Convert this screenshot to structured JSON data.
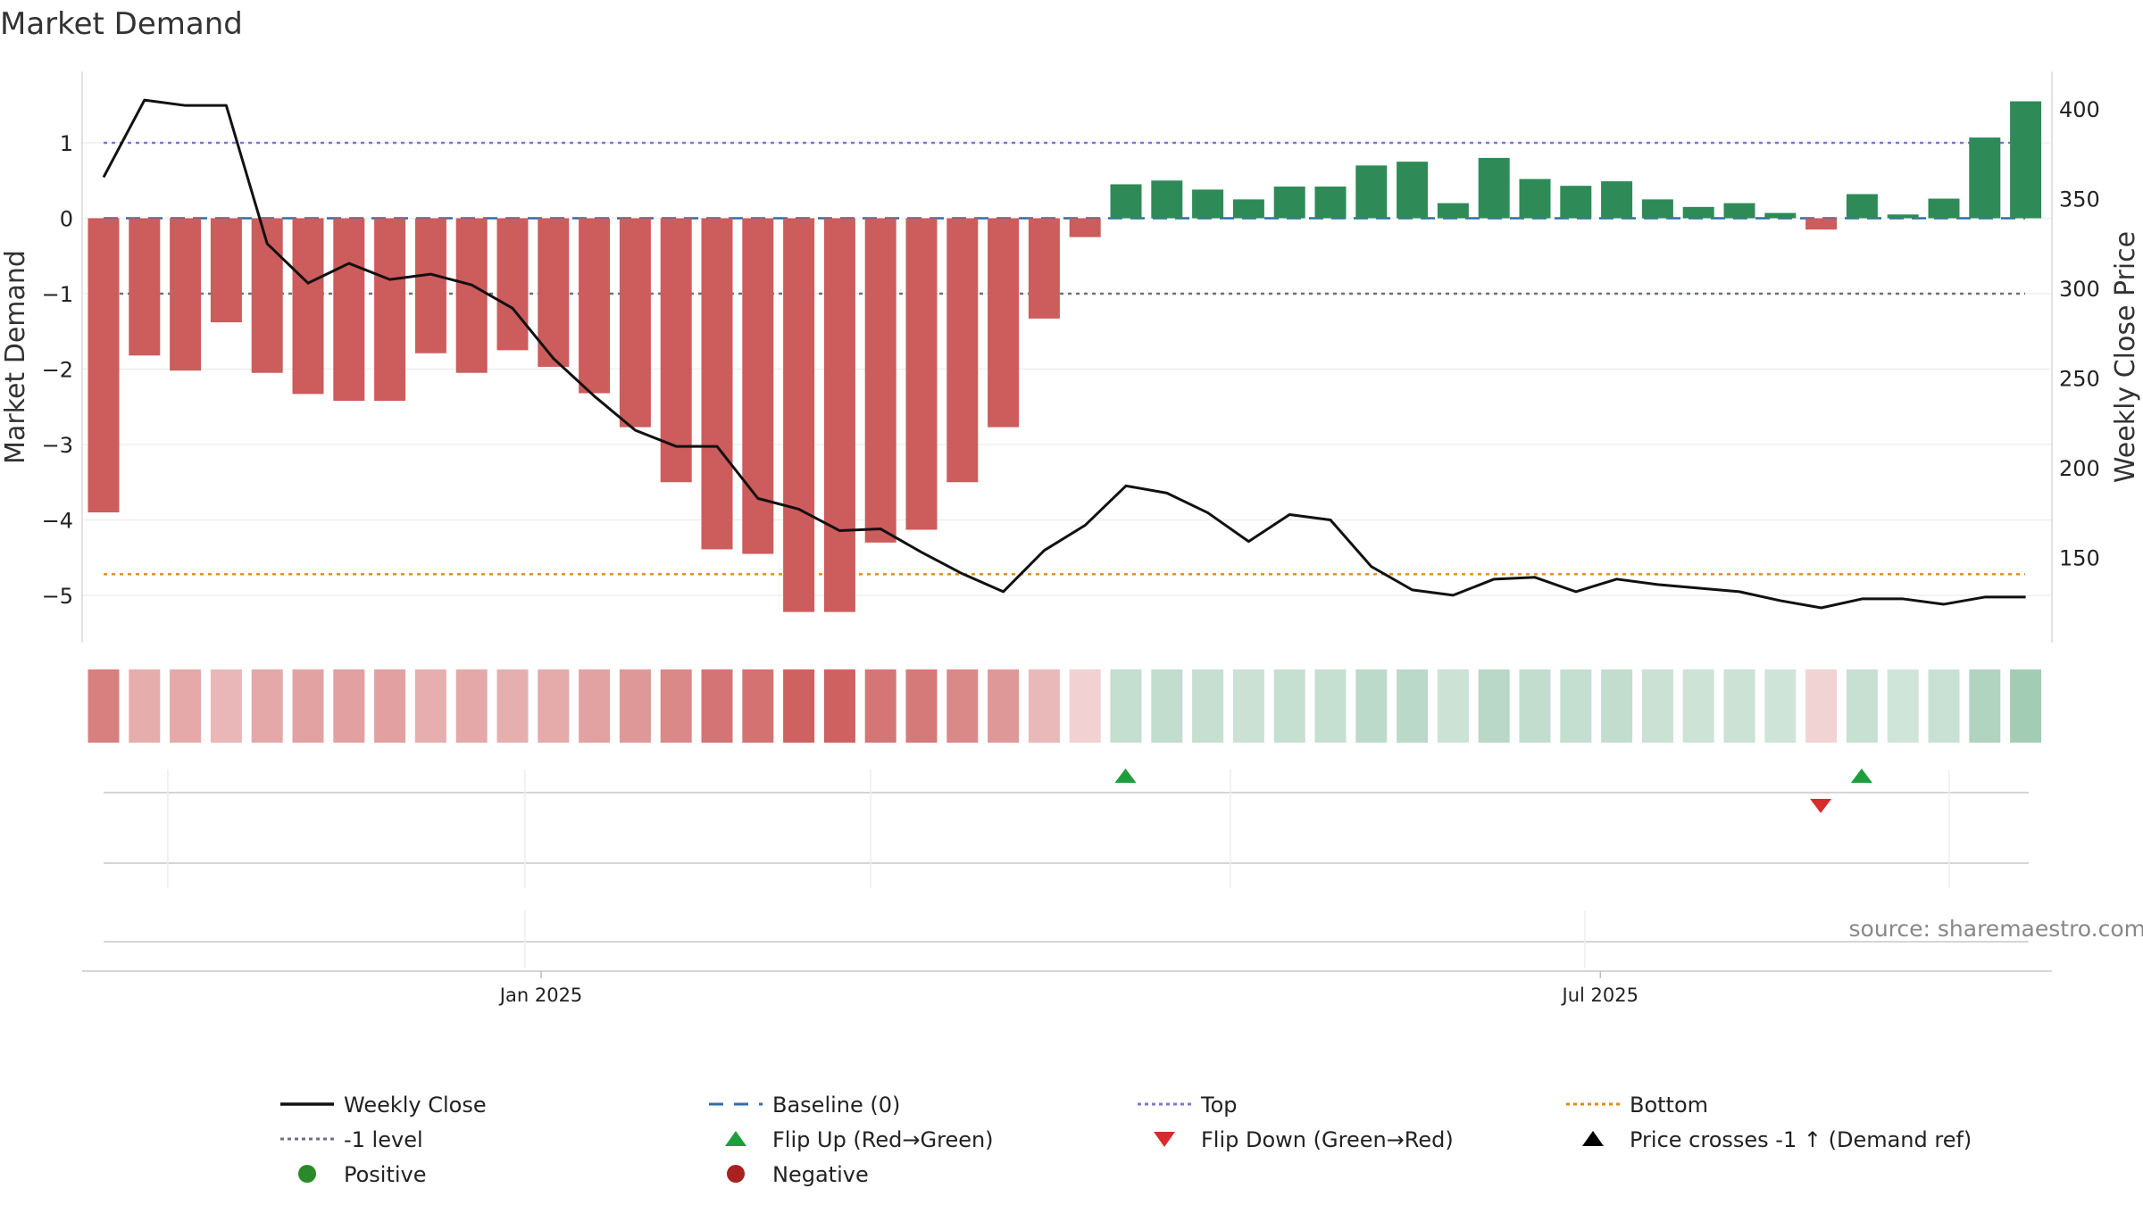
{
  "chart_data": {
    "type": "bar",
    "title": "Market Demand",
    "ylabel_left": "Market Demand",
    "ylabel_right": "Weekly Close Price",
    "y_left_ticks": [
      1,
      0,
      -1,
      -2,
      -3,
      -4,
      -5
    ],
    "y_left_tick_labels": [
      "1",
      "0",
      "−1",
      "−2",
      "−3",
      "−4",
      "−5"
    ],
    "y_right_ticks": [
      400,
      350,
      300,
      250,
      200,
      150
    ],
    "y_right_tick_labels": [
      "400",
      "350",
      "300",
      "250",
      "200",
      "150"
    ],
    "date_ticks": [
      {
        "week": 10.7,
        "label": "Jan 2025"
      },
      {
        "week": 36.6,
        "label": "Jul 2025"
      }
    ],
    "demand": [
      -3.9,
      -1.82,
      -2.02,
      -1.38,
      -2.05,
      -2.33,
      -2.42,
      -2.42,
      -1.79,
      -2.05,
      -1.75,
      -1.97,
      -2.32,
      -2.77,
      -3.5,
      -4.39,
      -4.45,
      -5.22,
      -5.22,
      -4.3,
      -4.13,
      -3.5,
      -2.77,
      -1.33,
      -0.25,
      0.45,
      0.5,
      0.38,
      0.25,
      0.42,
      0.42,
      0.7,
      0.75,
      0.2,
      0.8,
      0.52,
      0.43,
      0.49,
      0.25,
      0.15,
      0.2,
      0.07,
      -0.15,
      0.32,
      0.05,
      0.26,
      1.07,
      1.55
    ],
    "price": [
      362,
      405,
      402,
      402,
      325,
      303,
      314,
      305,
      308,
      302,
      289,
      261,
      240,
      221,
      212,
      212,
      183,
      177,
      165,
      166,
      153,
      141,
      131,
      154,
      168,
      190,
      186,
      175,
      159,
      174,
      171,
      145,
      132,
      129,
      138,
      139,
      131,
      138,
      135,
      133,
      131,
      126,
      122,
      127,
      127,
      124,
      128,
      128
    ],
    "reference_lines": [
      {
        "name": "Baseline (0)",
        "value": 0,
        "color": "#2f6da8"
      },
      {
        "name": "Top",
        "value": 1.0,
        "color": "#7b78d6"
      },
      {
        "name": "-1 level",
        "value": -1.0,
        "color": "#6d7180"
      },
      {
        "name": "Bottom",
        "value": -4.72,
        "color": "#e08a1e"
      }
    ],
    "flip_up_weeks": [
      25,
      43
    ],
    "flip_down_weeks": [
      42
    ],
    "colors": {
      "positive": "#2e8b57",
      "negative": "#cd5c5c",
      "price_line": "#111111",
      "flip_up": "#1e9e3c",
      "flip_down": "#d62c2c",
      "positive_dot": "#2a8a2a",
      "negative_dot": "#a82020"
    },
    "legend": [
      {
        "label": "Weekly Close",
        "symbol": "solid-line",
        "color": "#111111"
      },
      {
        "label": "Baseline (0)",
        "symbol": "dashed-line",
        "color": "#2f6da8"
      },
      {
        "label": "Top",
        "symbol": "dotted-line",
        "color": "#7b78d6"
      },
      {
        "label": "Bottom",
        "symbol": "dotted-line",
        "color": "#e08a1e"
      },
      {
        "label": "-1 level",
        "symbol": "dotted-line",
        "color": "#6d7180"
      },
      {
        "label": "Flip Up (Red→Green)",
        "symbol": "triangle-up",
        "color": "#1e9e3c"
      },
      {
        "label": "Flip Down (Green→Red)",
        "symbol": "triangle-down",
        "color": "#d62c2c"
      },
      {
        "label": "Price crosses -1 ↑ (Demand ref)",
        "symbol": "triangle-up",
        "color": "#000000"
      },
      {
        "label": "Positive",
        "symbol": "dot",
        "color": "#2a8a2a"
      },
      {
        "label": "Negative",
        "symbol": "dot",
        "color": "#a82020"
      }
    ],
    "source": "source: sharemaestro.com"
  }
}
